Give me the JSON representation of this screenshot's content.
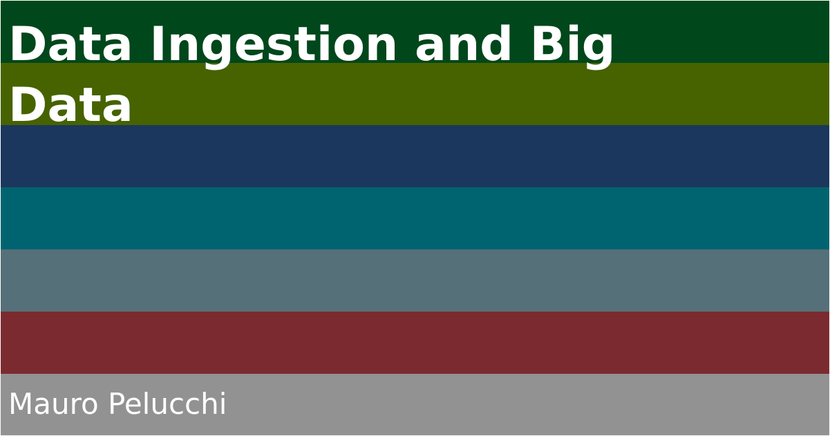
{
  "card": {
    "title": "Data Ingestion and Big Data",
    "author": "Mauro Pelucchi"
  },
  "stripes": [
    {
      "color": "#00471b"
    },
    {
      "color": "#466300"
    },
    {
      "color": "#1b375d"
    },
    {
      "color": "#006470"
    },
    {
      "color": "#557079"
    },
    {
      "color": "#7b2b2f"
    },
    {
      "color": "#929292"
    }
  ]
}
